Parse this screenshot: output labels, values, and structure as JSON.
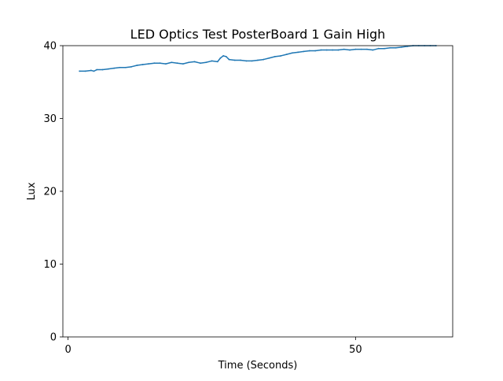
{
  "chart_data": {
    "type": "line",
    "title": "LED Optics Test PosterBoard 1 Gain High",
    "xlabel": "Time (Seconds)",
    "ylabel": "Lux",
    "xlim": [
      -0.9,
      66.9
    ],
    "ylim": [
      0,
      40
    ],
    "xticks": [
      0,
      50
    ],
    "yticks": [
      0,
      10,
      20,
      30,
      40
    ],
    "grid": false,
    "line_color": "#1f77b4",
    "series": [
      {
        "x": [
          2,
          3,
          4,
          4.5,
          5,
          6,
          7,
          8,
          9,
          10,
          11,
          12,
          13,
          14,
          15,
          16,
          17,
          18,
          19,
          20,
          21,
          22,
          23,
          24,
          25,
          26,
          26.5,
          27,
          27.5,
          28,
          29,
          30,
          31,
          32,
          33,
          34,
          35,
          36,
          37,
          38,
          39,
          40,
          41,
          42,
          43,
          44,
          45,
          46,
          47,
          48,
          49,
          50,
          51,
          52,
          53,
          54,
          55,
          56,
          57,
          58,
          59,
          60,
          61,
          62,
          63,
          64
        ],
        "y": [
          36.5,
          36.5,
          36.6,
          36.5,
          36.7,
          36.7,
          36.8,
          36.9,
          37.0,
          37.0,
          37.1,
          37.3,
          37.4,
          37.5,
          37.6,
          37.6,
          37.5,
          37.7,
          37.6,
          37.5,
          37.7,
          37.8,
          37.6,
          37.7,
          37.9,
          37.8,
          38.3,
          38.6,
          38.5,
          38.1,
          38.0,
          38.0,
          37.9,
          37.9,
          38.0,
          38.1,
          38.3,
          38.5,
          38.6,
          38.8,
          39.0,
          39.1,
          39.2,
          39.3,
          39.3,
          39.4,
          39.4,
          39.4,
          39.4,
          39.5,
          39.4,
          39.5,
          39.5,
          39.5,
          39.4,
          39.6,
          39.6,
          39.7,
          39.7,
          39.8,
          39.9,
          40.0,
          40.1,
          40.0,
          40.1,
          40.0
        ]
      }
    ]
  }
}
